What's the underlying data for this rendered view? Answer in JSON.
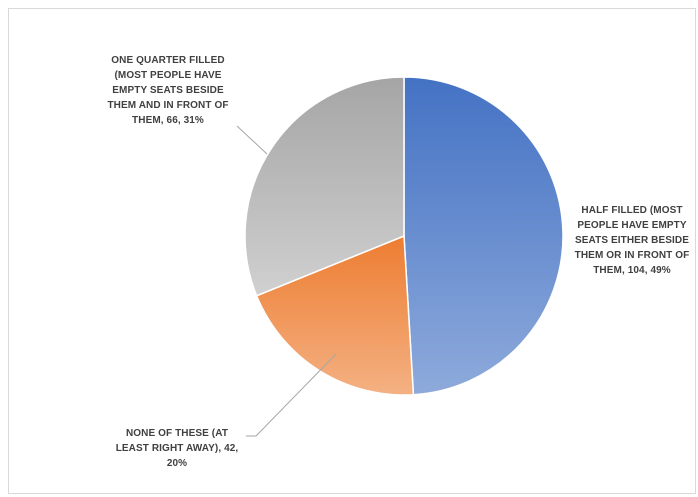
{
  "chart_data": {
    "type": "pie",
    "slices": [
      {
        "label": "HALF FILLED (MOST PEOPLE HAVE EMPTY SEATS EITHER BESIDE THEM OR IN FRONT OF THEM",
        "value": 104,
        "percent": "49%",
        "data_label": "HALF FILLED (MOST PEOPLE HAVE EMPTY SEATS EITHER BESIDE THEM OR IN FRONT OF THEM, 104, 49%",
        "color_start": "#4472c4",
        "color_end": "#8eaadb"
      },
      {
        "label": "NONE OF THESE (AT LEAST RIGHT AWAY)",
        "value": 42,
        "percent": "20%",
        "data_label": "NONE OF THESE (AT LEAST RIGHT AWAY), 42, 20%",
        "color_start": "#ed7d31",
        "color_end": "#f4b183"
      },
      {
        "label": "ONE QUARTER FILLED (MOST PEOPLE HAVE EMPTY SEATS BESIDE THEM AND IN FRONT OF THEM",
        "value": 66,
        "percent": "31%",
        "data_label": "ONE QUARTER FILLED (MOST PEOPLE HAVE EMPTY SEATS BESIDE THEM AND IN FRONT OF THEM, 66, 31%",
        "color_start": "#a5a5a5",
        "color_end": "#d0d0d0"
      }
    ],
    "start_angle_deg": 0,
    "direction": "clockwise",
    "legend": "none"
  }
}
